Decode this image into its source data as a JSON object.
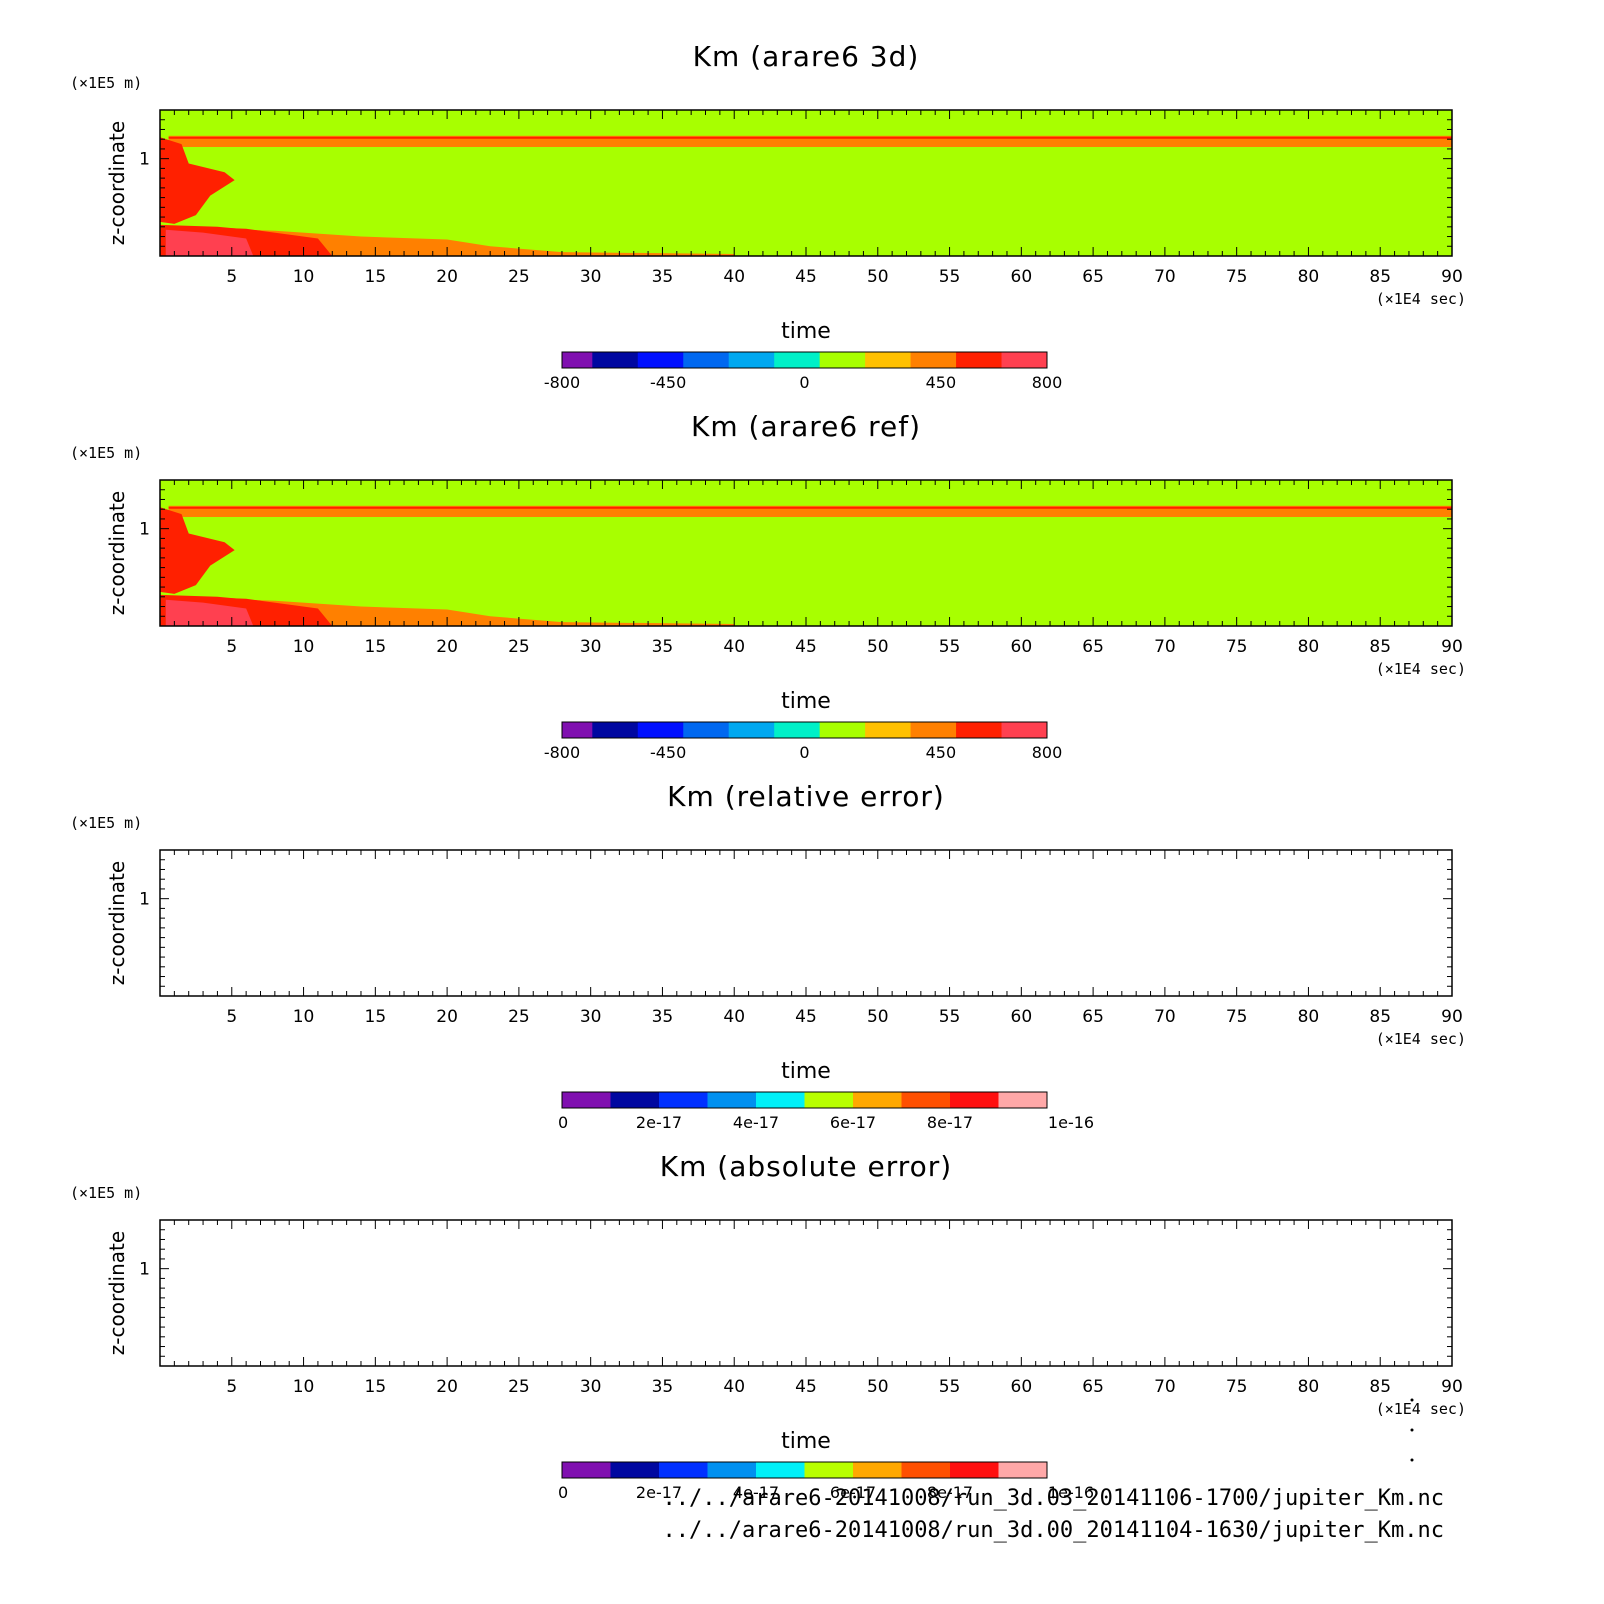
{
  "chart_data": [
    {
      "type": "heatmap",
      "title": "Km (arare6 3d)",
      "xlabel": "time",
      "x_unit": "(×1E4 sec)",
      "ylabel": "z-coordinate",
      "y_unit": "(×1E5 m)",
      "xlim": [
        0,
        90
      ],
      "ylim": [
        0,
        1.5
      ],
      "x_ticks": [
        5,
        10,
        15,
        20,
        25,
        30,
        35,
        40,
        45,
        50,
        55,
        60,
        65,
        70,
        75,
        80,
        85,
        90
      ],
      "y_ticks": [
        1
      ],
      "field": "filled",
      "colorbar": {
        "labels": [
          "-800",
          "-450",
          "0",
          "450",
          "800"
        ],
        "label_values": [
          -800,
          -450,
          0,
          450,
          800
        ],
        "range": [
          -800,
          800
        ],
        "edges": [
          -800,
          -700,
          -550,
          -400,
          -250,
          -100,
          50,
          200,
          350,
          500,
          650,
          800
        ],
        "colors": [
          "#8010b0",
          "#0008a0",
          "#0010ff",
          "#0068f0",
          "#00a8f0",
          "#00f0c8",
          "#a8ff00",
          "#ffc000",
          "#ff8000",
          "#ff2000",
          "#ff4050",
          "#ffb0b0"
        ]
      }
    },
    {
      "type": "heatmap",
      "title": "Km (arare6 ref)",
      "xlabel": "time",
      "x_unit": "(×1E4 sec)",
      "ylabel": "z-coordinate",
      "y_unit": "(×1E5 m)",
      "xlim": [
        0,
        90
      ],
      "ylim": [
        0,
        1.5
      ],
      "x_ticks": [
        5,
        10,
        15,
        20,
        25,
        30,
        35,
        40,
        45,
        50,
        55,
        60,
        65,
        70,
        75,
        80,
        85,
        90
      ],
      "y_ticks": [
        1
      ],
      "field": "filled",
      "colorbar": {
        "labels": [
          "-800",
          "-450",
          "0",
          "450",
          "800"
        ],
        "label_values": [
          -800,
          -450,
          0,
          450,
          800
        ],
        "range": [
          -800,
          800
        ],
        "edges": [
          -800,
          -700,
          -550,
          -400,
          -250,
          -100,
          50,
          200,
          350,
          500,
          650,
          800
        ],
        "colors": [
          "#8010b0",
          "#0008a0",
          "#0010ff",
          "#0068f0",
          "#00a8f0",
          "#00f0c8",
          "#a8ff00",
          "#ffc000",
          "#ff8000",
          "#ff2000",
          "#ff4050",
          "#ffb0b0"
        ]
      }
    },
    {
      "type": "heatmap",
      "title": "Km (relative error)",
      "xlabel": "time",
      "x_unit": "(×1E4 sec)",
      "ylabel": "z-coordinate",
      "y_unit": "(×1E5 m)",
      "xlim": [
        0,
        90
      ],
      "ylim": [
        0,
        1.5
      ],
      "x_ticks": [
        5,
        10,
        15,
        20,
        25,
        30,
        35,
        40,
        45,
        50,
        55,
        60,
        65,
        70,
        75,
        80,
        85,
        90
      ],
      "y_ticks": [
        1
      ],
      "field": "empty",
      "colorbar": {
        "labels": [
          "0",
          "2e-17",
          "4e-17",
          "6e-17",
          "8e-17",
          "1e-16"
        ],
        "label_values": [
          0,
          2e-17,
          4e-17,
          6e-17,
          8e-17,
          1e-16
        ],
        "range": [
          0,
          1e-16
        ],
        "edges": [
          0,
          1e-17,
          2e-17,
          3e-17,
          4e-17,
          5e-17,
          6e-17,
          7e-17,
          8e-17,
          9e-17,
          1e-16
        ],
        "colors": [
          "#8010b0",
          "#0008a0",
          "#0030ff",
          "#0090f0",
          "#00f0f8",
          "#b8ff00",
          "#ffa800",
          "#ff5000",
          "#ff1010",
          "#ffa8a8"
        ]
      }
    },
    {
      "type": "heatmap",
      "title": "Km (absolute error)",
      "xlabel": "time",
      "x_unit": "(×1E4 sec)",
      "ylabel": "z-coordinate",
      "y_unit": "(×1E5 m)",
      "xlim": [
        0,
        90
      ],
      "ylim": [
        0,
        1.5
      ],
      "x_ticks": [
        5,
        10,
        15,
        20,
        25,
        30,
        35,
        40,
        45,
        50,
        55,
        60,
        65,
        70,
        75,
        80,
        85,
        90
      ],
      "y_ticks": [
        1
      ],
      "field": "empty",
      "colorbar": {
        "labels": [
          "0",
          "2e-17",
          "4e-17",
          "6e-17",
          "8e-17",
          "1e-16"
        ],
        "label_values": [
          0,
          2e-17,
          4e-17,
          6e-17,
          8e-17,
          1e-16
        ],
        "range": [
          0,
          1e-16
        ],
        "edges": [
          0,
          1e-17,
          2e-17,
          3e-17,
          4e-17,
          5e-17,
          6e-17,
          7e-17,
          8e-17,
          9e-17,
          1e-16
        ],
        "colors": [
          "#8010b0",
          "#0008a0",
          "#0030ff",
          "#0090f0",
          "#00f0f8",
          "#b8ff00",
          "#ffa800",
          "#ff5000",
          "#ff1010",
          "#ffa8a8"
        ]
      }
    }
  ],
  "footer": {
    "file_a": "../../arare6-20141008/run_3d.03_20141106-1700/jupiter_Km.nc",
    "file_b": "../../arare6-20141008/run_3d.00_20141104-1630/jupiter_Km.nc"
  }
}
